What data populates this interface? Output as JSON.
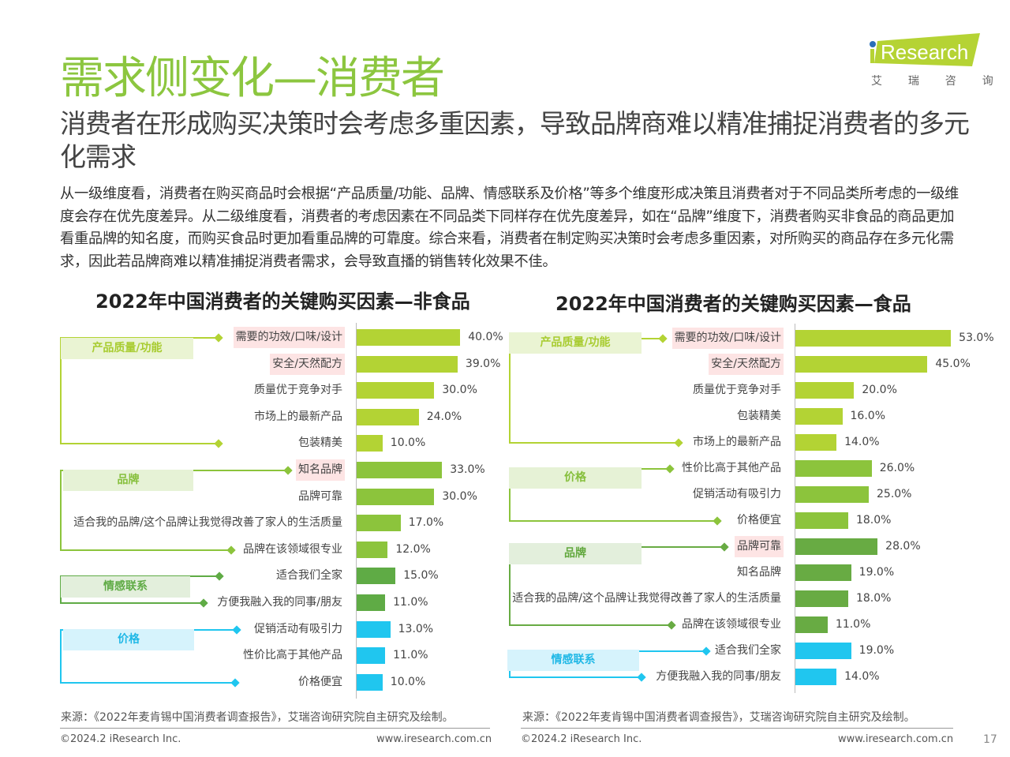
{
  "header": {
    "title": "需求侧变化—消费者",
    "subtitle": "消费者在形成购买决策时会考虑多重因素，导致品牌商难以精准捕捉消费者的多元化需求",
    "body": "从一级维度看，消费者在购买商品时会根据“产品质量/功能、品牌、情感联系及价格”等多个维度形成决策且消费者对于不同品类所考虑的一级维度会存在优先度差异。从二级维度看，消费者的考虑因素在不同品类下同样存在优先度差异，如在“品牌”维度下，消费者购买非食品的商品更加看重品牌的知名度，而购买食品时更加看重品牌的可靠度。综合来看，消费者在制定购买决策时会考虑多重因素，对所购买的商品存在多元化需求，因此若品牌商难以精准捕捉消费者需求，会导致直播的销售转化效果不佳。"
  },
  "logo": {
    "text": "iResearch",
    "sub": "艾  瑞  咨  询",
    "color": "#b5d334"
  },
  "chart_data": [
    {
      "type": "bar",
      "orientation": "horizontal",
      "title": "2022年中国消费者的关键购买因素—非食品",
      "groups": [
        {
          "name": "产品质量/功能",
          "color": "#b3d334",
          "box": "#eaf4d3",
          "text": "#a8cc30",
          "items": [
            [
              "需要的功效/口味/设计",
              40,
              true
            ],
            [
              "安全/天然配方",
              39,
              true
            ],
            [
              "质量优于竞争对手",
              30,
              false
            ],
            [
              "市场上的最新产品",
              24,
              false
            ],
            [
              "包装精美",
              10,
              false
            ]
          ]
        },
        {
          "name": "品牌",
          "color": "#8cc43c",
          "box": "#e6f2d6",
          "text": "#86bf3c",
          "items": [
            [
              "知名品牌",
              33,
              true
            ],
            [
              "品牌可靠",
              30,
              false
            ],
            [
              "适合我的品牌/这个品牌让我觉得改善了家人的生活质量",
              17,
              false
            ],
            [
              "品牌在该领域很专业",
              12,
              false
            ]
          ]
        },
        {
          "name": "情感联系",
          "color": "#5fab45",
          "box": "#e3efdc",
          "text": "#5fab45",
          "items": [
            [
              "适合我们全家",
              15,
              false
            ],
            [
              "方便我融入我的同事/朋友",
              11,
              false
            ]
          ]
        },
        {
          "name": "价格",
          "color": "#20c6ef",
          "box": "#d6f3fc",
          "text": "#20b8e6",
          "items": [
            [
              "促销活动有吸引力",
              13,
              false
            ],
            [
              "性价比高于其他产品",
              11,
              false
            ],
            [
              "价格便宜",
              10,
              false
            ]
          ]
        }
      ],
      "source": "来源：《2022年麦肯锡中国消费者调查报告》，艾瑞咨询研究院自主研究及绘制。"
    },
    {
      "type": "bar",
      "orientation": "horizontal",
      "title": "2022年中国消费者的关键购买因素—食品",
      "groups": [
        {
          "name": "产品质量/功能",
          "color": "#b3d334",
          "box": "#eaf4d3",
          "text": "#a8cc30",
          "items": [
            [
              "需要的功效/口味/设计",
              53,
              true
            ],
            [
              "安全/天然配方",
              45,
              true
            ],
            [
              "质量优于竞争对手",
              20,
              false
            ],
            [
              "包装精美",
              16,
              false
            ],
            [
              "市场上的最新产品",
              14,
              false
            ]
          ]
        },
        {
          "name": "价格",
          "color": "#8cc43c",
          "box": "#e6f2d6",
          "text": "#86bf3c",
          "items": [
            [
              "性价比高于其他产品",
              26,
              false
            ],
            [
              "促销活动有吸引力",
              25,
              false
            ],
            [
              "价格便宜",
              18,
              false
            ]
          ]
        },
        {
          "name": "品牌",
          "color": "#68ab43",
          "box": "#e3efdc",
          "text": "#62a83e",
          "items": [
            [
              "品牌可靠",
              28,
              true
            ],
            [
              "知名品牌",
              19,
              false
            ],
            [
              "适合我的品牌/这个品牌让我觉得改善了家人的生活质量",
              18,
              false
            ],
            [
              "品牌在该领域很专业",
              11,
              false
            ]
          ]
        },
        {
          "name": "情感联系",
          "color": "#20c6ef",
          "box": "#d6f3fc",
          "text": "#20b8e6",
          "items": [
            [
              "适合我们全家",
              19,
              false
            ],
            [
              "方便我融入我的同事/朋友",
              14,
              false
            ]
          ]
        }
      ],
      "source": "来源：《2022年麦肯锡中国消费者调查报告》，艾瑞咨询研究院自主研究及绘制。"
    }
  ],
  "footer": {
    "copyright": "©2024.2 iResearch Inc.",
    "url": "www.iresearch.com.cn",
    "page": "17"
  }
}
